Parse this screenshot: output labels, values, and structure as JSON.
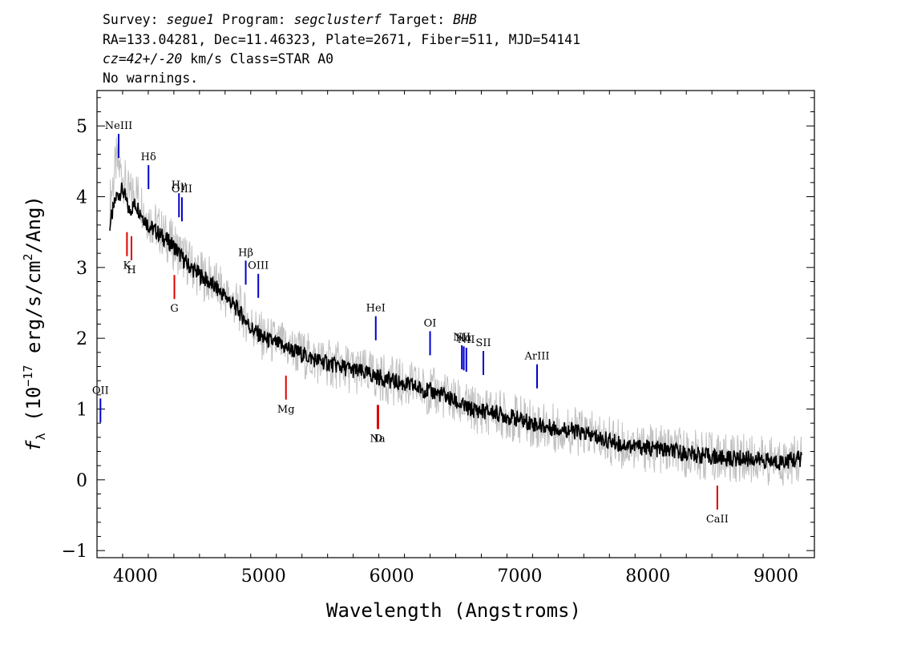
{
  "header": {
    "line1": {
      "survey_label": "Survey:",
      "survey": "segue1",
      "program_label": "Program:",
      "program": "segclusterf",
      "target_label": "Target:",
      "target": "BHB"
    },
    "line2": "RA=133.04281, Dec=11.46323, Plate=2671, Fiber=511, MJD=54141",
    "line3": {
      "z": "cz=42+/-20",
      "rest": " km/s Class=STAR A0"
    },
    "line4": "No warnings."
  },
  "chart_data": {
    "type": "line",
    "title": "",
    "xlabel": "Wavelength (Angstroms)",
    "ylabel": "f_λ (10^-17 erg/s/cm^2/Ang)",
    "xlim": [
      3700,
      9300
    ],
    "ylim": [
      -1.1,
      5.5
    ],
    "x_ticks": [
      4000,
      5000,
      6000,
      7000,
      8000,
      9000
    ],
    "y_ticks": [
      -1,
      0,
      1,
      2,
      3,
      4,
      5
    ],
    "grid": false,
    "series": [
      {
        "role": "data (noisy flux)",
        "color": "#c0c0c0",
        "x": [
          3800,
          3850,
          3900,
          3950,
          4000,
          4100,
          4200,
          4300,
          4400,
          4500,
          4600,
          4700,
          4800,
          4900,
          5000,
          5200,
          5400,
          5600,
          5800,
          6000,
          6200,
          6400,
          6600,
          6800,
          7000,
          7200,
          7400,
          7600,
          7800,
          8000,
          8200,
          8400,
          8600,
          8800,
          9000,
          9200
        ],
        "y": [
          3.9,
          4.5,
          4.3,
          4.0,
          4.1,
          3.7,
          3.5,
          3.3,
          3.1,
          2.9,
          2.8,
          2.6,
          2.45,
          2.2,
          2.0,
          1.85,
          1.7,
          1.6,
          1.5,
          1.4,
          1.3,
          1.2,
          1.0,
          0.95,
          0.85,
          0.75,
          0.7,
          0.6,
          0.5,
          0.45,
          0.4,
          0.35,
          0.3,
          0.3,
          0.25,
          0.3
        ]
      },
      {
        "role": "model (smoothed flux)",
        "color": "#000000",
        "x": [
          3800,
          3850,
          3900,
          3950,
          4000,
          4100,
          4200,
          4300,
          4400,
          4500,
          4600,
          4700,
          4800,
          4900,
          5000,
          5200,
          5400,
          5600,
          5800,
          6000,
          6200,
          6400,
          6600,
          6800,
          7000,
          7200,
          7400,
          7600,
          7800,
          8000,
          8200,
          8400,
          8600,
          8800,
          9000,
          9200
        ],
        "y": [
          3.6,
          4.0,
          4.1,
          3.8,
          3.9,
          3.6,
          3.45,
          3.3,
          3.05,
          2.9,
          2.75,
          2.6,
          2.4,
          2.15,
          2.0,
          1.85,
          1.7,
          1.6,
          1.5,
          1.4,
          1.3,
          1.2,
          1.0,
          0.95,
          0.85,
          0.75,
          0.7,
          0.6,
          0.5,
          0.45,
          0.4,
          0.35,
          0.3,
          0.3,
          0.25,
          0.3
        ]
      }
    ],
    "emission_lines": [
      {
        "label": "NeIII",
        "wavelength": 3869
      },
      {
        "label": "OII",
        "wavelength": 3727
      },
      {
        "label": "Hδ",
        "wavelength": 4102
      },
      {
        "label": "Hγ",
        "wavelength": 4340
      },
      {
        "label": "OIII",
        "wavelength": 4363
      },
      {
        "label": "Hβ",
        "wavelength": 4861
      },
      {
        "label": "OIII",
        "wavelength": 4959
      },
      {
        "label": "HeI",
        "wavelength": 5876
      },
      {
        "label": "OI",
        "wavelength": 6300
      },
      {
        "label": "NII",
        "wavelength": 6548
      },
      {
        "label": "Hα",
        "wavelength": 6563
      },
      {
        "label": "NII",
        "wavelength": 6583
      },
      {
        "label": "SII",
        "wavelength": 6716
      },
      {
        "label": "ArIII",
        "wavelength": 7135
      }
    ],
    "absorption_lines": [
      {
        "label": "K",
        "wavelength": 3934
      },
      {
        "label": "H",
        "wavelength": 3969
      },
      {
        "label": "G",
        "wavelength": 4304
      },
      {
        "label": "Mg",
        "wavelength": 5175
      },
      {
        "label": "Na",
        "wavelength": 5890
      },
      {
        "label": "D",
        "wavelength": 5896
      },
      {
        "label": "CaII",
        "wavelength": 8542
      }
    ],
    "colors": {
      "data": "#c0c0c0",
      "model": "#000000",
      "emission": "#0000cc",
      "absorption": "#dd0000"
    }
  }
}
